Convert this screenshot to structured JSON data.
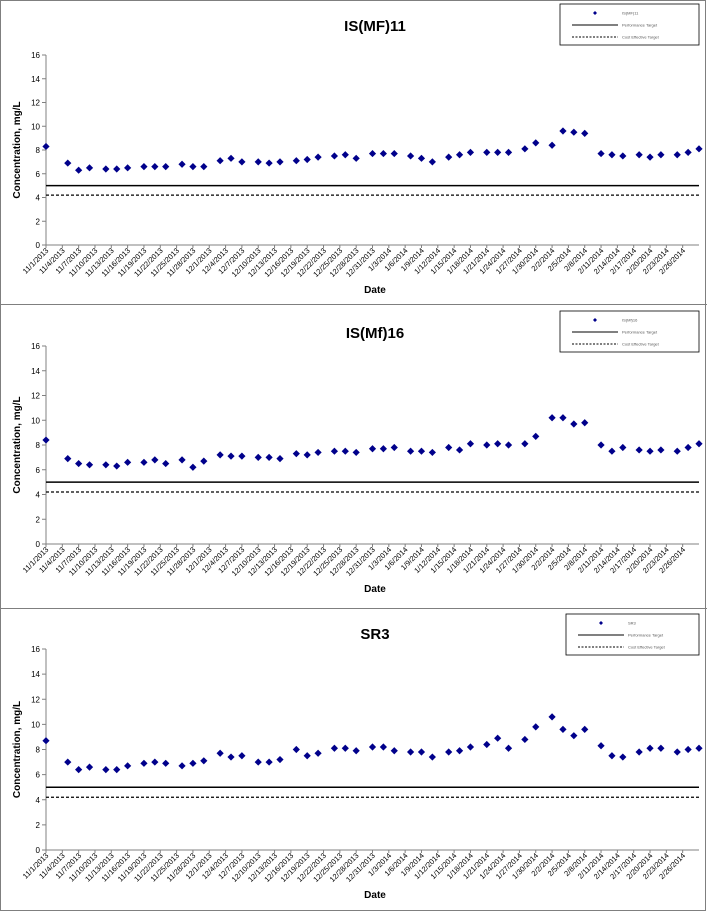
{
  "chart_data": [
    {
      "type": "scatter",
      "title": "IS(MF)11",
      "xlabel": "Date",
      "ylabel": "Concentration, mg/L",
      "ylim": [
        0,
        16
      ],
      "yticks": [
        0,
        2,
        4,
        6,
        8,
        10,
        12,
        14,
        16
      ],
      "grid": false,
      "legend_position": "top-right",
      "legend": [
        {
          "label": "IS(MF)11",
          "kind": "marker"
        },
        {
          "label": "Performance Target",
          "kind": "solid-line"
        },
        {
          "label": "Cost Effective Target",
          "kind": "dashed-line"
        }
      ],
      "x_tick_labels": [
        "11/1/2013",
        "11/4/2013",
        "11/7/2013",
        "11/10/2013",
        "11/13/2013",
        "11/16/2013",
        "11/19/2013",
        "11/22/2013",
        "11/25/2013",
        "11/28/2013",
        "12/1/2013",
        "12/4/2013",
        "12/7/2013",
        "12/10/2013",
        "12/13/2013",
        "12/16/2013",
        "12/19/2013",
        "12/22/2013",
        "12/25/2013",
        "12/28/2013",
        "12/31/2013",
        "1/3/2014",
        "1/6/2014",
        "1/9/2014",
        "1/12/2014",
        "1/15/2014",
        "1/18/2014",
        "1/21/2014",
        "1/24/2014",
        "1/27/2014",
        "1/30/2014",
        "2/2/2014",
        "2/5/2014",
        "2/8/2014",
        "2/11/2014",
        "2/14/2014",
        "2/17/2014",
        "2/20/2014",
        "2/23/2014",
        "2/26/2014"
      ],
      "reference_lines": [
        {
          "label": "Performance Target",
          "y": 5.0,
          "style": "solid"
        },
        {
          "label": "Cost Effective Target",
          "y": 4.2,
          "style": "dashed"
        }
      ],
      "series": [
        {
          "name": "IS(MF)11",
          "color": "#00008b",
          "points": [
            [
              "11/1/2013",
              8.3
            ],
            [
              "11/5/2013",
              6.9
            ],
            [
              "11/7/2013",
              6.3
            ],
            [
              "11/9/2013",
              6.5
            ],
            [
              "11/12/2013",
              6.4
            ],
            [
              "11/14/2013",
              6.4
            ],
            [
              "11/16/2013",
              6.5
            ],
            [
              "11/19/2013",
              6.6
            ],
            [
              "11/21/2013",
              6.6
            ],
            [
              "11/23/2013",
              6.6
            ],
            [
              "11/26/2013",
              6.8
            ],
            [
              "11/28/2013",
              6.6
            ],
            [
              "11/30/2013",
              6.6
            ],
            [
              "12/3/2013",
              7.1
            ],
            [
              "12/5/2013",
              7.3
            ],
            [
              "12/7/2013",
              7.0
            ],
            [
              "12/10/2013",
              7.0
            ],
            [
              "12/12/2013",
              6.9
            ],
            [
              "12/14/2013",
              7.0
            ],
            [
              "12/17/2013",
              7.1
            ],
            [
              "12/19/2013",
              7.2
            ],
            [
              "12/21/2013",
              7.4
            ],
            [
              "12/24/2013",
              7.5
            ],
            [
              "12/26/2013",
              7.6
            ],
            [
              "12/28/2013",
              7.3
            ],
            [
              "12/31/2013",
              7.7
            ],
            [
              "1/2/2014",
              7.7
            ],
            [
              "1/4/2014",
              7.7
            ],
            [
              "1/7/2014",
              7.5
            ],
            [
              "1/9/2014",
              7.3
            ],
            [
              "1/11/2014",
              7.0
            ],
            [
              "1/14/2014",
              7.4
            ],
            [
              "1/16/2014",
              7.6
            ],
            [
              "1/18/2014",
              7.8
            ],
            [
              "1/21/2014",
              7.8
            ],
            [
              "1/23/2014",
              7.8
            ],
            [
              "1/25/2014",
              7.8
            ],
            [
              "1/28/2014",
              8.1
            ],
            [
              "1/30/2014",
              8.6
            ],
            [
              "2/2/2014",
              8.4
            ],
            [
              "2/4/2014",
              9.6
            ],
            [
              "2/6/2014",
              9.5
            ],
            [
              "2/8/2014",
              9.4
            ],
            [
              "2/11/2014",
              7.7
            ],
            [
              "2/13/2014",
              7.6
            ],
            [
              "2/15/2014",
              7.5
            ],
            [
              "2/18/2014",
              7.6
            ],
            [
              "2/20/2014",
              7.4
            ],
            [
              "2/22/2014",
              7.6
            ],
            [
              "2/25/2014",
              7.6
            ],
            [
              "2/27/2014",
              7.8
            ],
            [
              "3/1/2014",
              8.1
            ]
          ]
        }
      ]
    },
    {
      "type": "scatter",
      "title": "IS(Mf)16",
      "xlabel": "Date",
      "ylabel": "Concentration, mg/L",
      "ylim": [
        0,
        16
      ],
      "yticks": [
        0,
        2,
        4,
        6,
        8,
        10,
        12,
        14,
        16
      ],
      "grid": false,
      "legend_position": "top-right",
      "legend": [
        {
          "label": "IS(Mf)16",
          "kind": "marker"
        },
        {
          "label": "Performance Target",
          "kind": "solid-line"
        },
        {
          "label": "Cost Effective Target",
          "kind": "dashed-line"
        }
      ],
      "x_tick_labels": [
        "11/1/2013",
        "11/4/2013",
        "11/7/2013",
        "11/10/2013",
        "11/13/2013",
        "11/16/2013",
        "11/19/2013",
        "11/22/2013",
        "11/25/2013",
        "11/28/2013",
        "12/1/2013",
        "12/4/2013",
        "12/7/2013",
        "12/10/2013",
        "12/13/2013",
        "12/16/2013",
        "12/19/2013",
        "12/22/2013",
        "12/25/2013",
        "12/28/2013",
        "12/31/2013",
        "1/3/2014",
        "1/6/2014",
        "1/9/2014",
        "1/12/2014",
        "1/15/2014",
        "1/18/2014",
        "1/21/2014",
        "1/24/2014",
        "1/27/2014",
        "1/30/2014",
        "2/2/2014",
        "2/5/2014",
        "2/8/2014",
        "2/11/2014",
        "2/14/2014",
        "2/17/2014",
        "2/20/2014",
        "2/23/2014",
        "2/26/2014"
      ],
      "reference_lines": [
        {
          "label": "Performance Target",
          "y": 5.0,
          "style": "solid"
        },
        {
          "label": "Cost Effective Target",
          "y": 4.2,
          "style": "dashed"
        }
      ],
      "series": [
        {
          "name": "IS(Mf)16",
          "color": "#00008b",
          "points": [
            [
              "11/1/2013",
              8.4
            ],
            [
              "11/5/2013",
              6.9
            ],
            [
              "11/7/2013",
              6.5
            ],
            [
              "11/9/2013",
              6.4
            ],
            [
              "11/12/2013",
              6.4
            ],
            [
              "11/14/2013",
              6.3
            ],
            [
              "11/16/2013",
              6.6
            ],
            [
              "11/19/2013",
              6.6
            ],
            [
              "11/21/2013",
              6.8
            ],
            [
              "11/23/2013",
              6.5
            ],
            [
              "11/26/2013",
              6.8
            ],
            [
              "11/28/2013",
              6.2
            ],
            [
              "11/30/2013",
              6.7
            ],
            [
              "12/3/2013",
              7.2
            ],
            [
              "12/5/2013",
              7.1
            ],
            [
              "12/7/2013",
              7.1
            ],
            [
              "12/10/2013",
              7.0
            ],
            [
              "12/12/2013",
              7.0
            ],
            [
              "12/14/2013",
              6.9
            ],
            [
              "12/17/2013",
              7.3
            ],
            [
              "12/19/2013",
              7.2
            ],
            [
              "12/21/2013",
              7.4
            ],
            [
              "12/24/2013",
              7.5
            ],
            [
              "12/26/2013",
              7.5
            ],
            [
              "12/28/2013",
              7.4
            ],
            [
              "12/31/2013",
              7.7
            ],
            [
              "1/2/2014",
              7.7
            ],
            [
              "1/4/2014",
              7.8
            ],
            [
              "1/7/2014",
              7.5
            ],
            [
              "1/9/2014",
              7.5
            ],
            [
              "1/11/2014",
              7.4
            ],
            [
              "1/14/2014",
              7.8
            ],
            [
              "1/16/2014",
              7.6
            ],
            [
              "1/18/2014",
              8.1
            ],
            [
              "1/21/2014",
              8.0
            ],
            [
              "1/23/2014",
              8.1
            ],
            [
              "1/25/2014",
              8.0
            ],
            [
              "1/28/2014",
              8.1
            ],
            [
              "1/30/2014",
              8.7
            ],
            [
              "2/2/2014",
              10.2
            ],
            [
              "2/4/2014",
              10.2
            ],
            [
              "2/6/2014",
              9.7
            ],
            [
              "2/8/2014",
              9.8
            ],
            [
              "2/11/2014",
              8.0
            ],
            [
              "2/13/2014",
              7.5
            ],
            [
              "2/15/2014",
              7.8
            ],
            [
              "2/18/2014",
              7.6
            ],
            [
              "2/20/2014",
              7.5
            ],
            [
              "2/22/2014",
              7.6
            ],
            [
              "2/25/2014",
              7.5
            ],
            [
              "2/27/2014",
              7.8
            ],
            [
              "3/1/2014",
              8.1
            ]
          ]
        }
      ]
    },
    {
      "type": "scatter",
      "title": "SR3",
      "xlabel": "Date",
      "ylabel": "Concentration, mg/L",
      "ylim": [
        0,
        16
      ],
      "yticks": [
        0,
        2,
        4,
        6,
        8,
        10,
        12,
        14,
        16
      ],
      "grid": false,
      "legend_position": "top-right",
      "legend": [
        {
          "label": "SR3",
          "kind": "marker"
        },
        {
          "label": "Performance Target",
          "kind": "solid-line"
        },
        {
          "label": "Cost Effective Target",
          "kind": "dashed-line"
        }
      ],
      "x_tick_labels": [
        "11/1/2013",
        "11/4/2013",
        "11/7/2013",
        "11/10/2013",
        "11/13/2013",
        "11/16/2013",
        "11/19/2013",
        "11/22/2013",
        "11/25/2013",
        "11/28/2013",
        "12/1/2013",
        "12/4/2013",
        "12/7/2013",
        "12/10/2013",
        "12/13/2013",
        "12/16/2013",
        "12/19/2013",
        "12/22/2013",
        "12/25/2013",
        "12/28/2013",
        "12/31/2013",
        "1/3/2014",
        "1/6/2014",
        "1/9/2014",
        "1/12/2014",
        "1/15/2014",
        "1/18/2014",
        "1/21/2014",
        "1/24/2014",
        "1/27/2014",
        "1/30/2014",
        "2/2/2014",
        "2/5/2014",
        "2/8/2014",
        "2/11/2014",
        "2/14/2014",
        "2/17/2014",
        "2/20/2014",
        "2/23/2014",
        "2/26/2014"
      ],
      "reference_lines": [
        {
          "label": "Performance Target",
          "y": 5.0,
          "style": "solid"
        },
        {
          "label": "Cost Effective Target",
          "y": 4.2,
          "style": "dashed"
        }
      ],
      "series": [
        {
          "name": "SR3",
          "color": "#00008b",
          "points": [
            [
              "11/1/2013",
              8.7
            ],
            [
              "11/5/2013",
              7.0
            ],
            [
              "11/7/2013",
              6.4
            ],
            [
              "11/9/2013",
              6.6
            ],
            [
              "11/12/2013",
              6.4
            ],
            [
              "11/14/2013",
              6.4
            ],
            [
              "11/16/2013",
              6.7
            ],
            [
              "11/19/2013",
              6.9
            ],
            [
              "11/21/2013",
              7.0
            ],
            [
              "11/23/2013",
              6.9
            ],
            [
              "11/26/2013",
              6.7
            ],
            [
              "11/28/2013",
              6.9
            ],
            [
              "11/30/2013",
              7.1
            ],
            [
              "12/3/2013",
              7.7
            ],
            [
              "12/5/2013",
              7.4
            ],
            [
              "12/7/2013",
              7.5
            ],
            [
              "12/10/2013",
              7.0
            ],
            [
              "12/12/2013",
              7.0
            ],
            [
              "12/14/2013",
              7.2
            ],
            [
              "12/17/2013",
              8.0
            ],
            [
              "12/19/2013",
              7.5
            ],
            [
              "12/21/2013",
              7.7
            ],
            [
              "12/24/2013",
              8.1
            ],
            [
              "12/26/2013",
              8.1
            ],
            [
              "12/28/2013",
              7.9
            ],
            [
              "12/31/2013",
              8.2
            ],
            [
              "1/2/2014",
              8.2
            ],
            [
              "1/4/2014",
              7.9
            ],
            [
              "1/7/2014",
              7.8
            ],
            [
              "1/9/2014",
              7.8
            ],
            [
              "1/11/2014",
              7.4
            ],
            [
              "1/14/2014",
              7.8
            ],
            [
              "1/16/2014",
              7.9
            ],
            [
              "1/18/2014",
              8.2
            ],
            [
              "1/21/2014",
              8.4
            ],
            [
              "1/23/2014",
              8.9
            ],
            [
              "1/25/2014",
              8.1
            ],
            [
              "1/28/2014",
              8.8
            ],
            [
              "1/30/2014",
              9.8
            ],
            [
              "2/2/2014",
              10.6
            ],
            [
              "2/4/2014",
              9.6
            ],
            [
              "2/6/2014",
              9.1
            ],
            [
              "2/8/2014",
              9.6
            ],
            [
              "2/11/2014",
              8.3
            ],
            [
              "2/13/2014",
              7.5
            ],
            [
              "2/15/2014",
              7.4
            ],
            [
              "2/18/2014",
              7.8
            ],
            [
              "2/20/2014",
              8.1
            ],
            [
              "2/22/2014",
              8.1
            ],
            [
              "2/25/2014",
              7.8
            ],
            [
              "2/27/2014",
              8.0
            ],
            [
              "3/1/2014",
              8.1
            ]
          ]
        }
      ]
    }
  ]
}
